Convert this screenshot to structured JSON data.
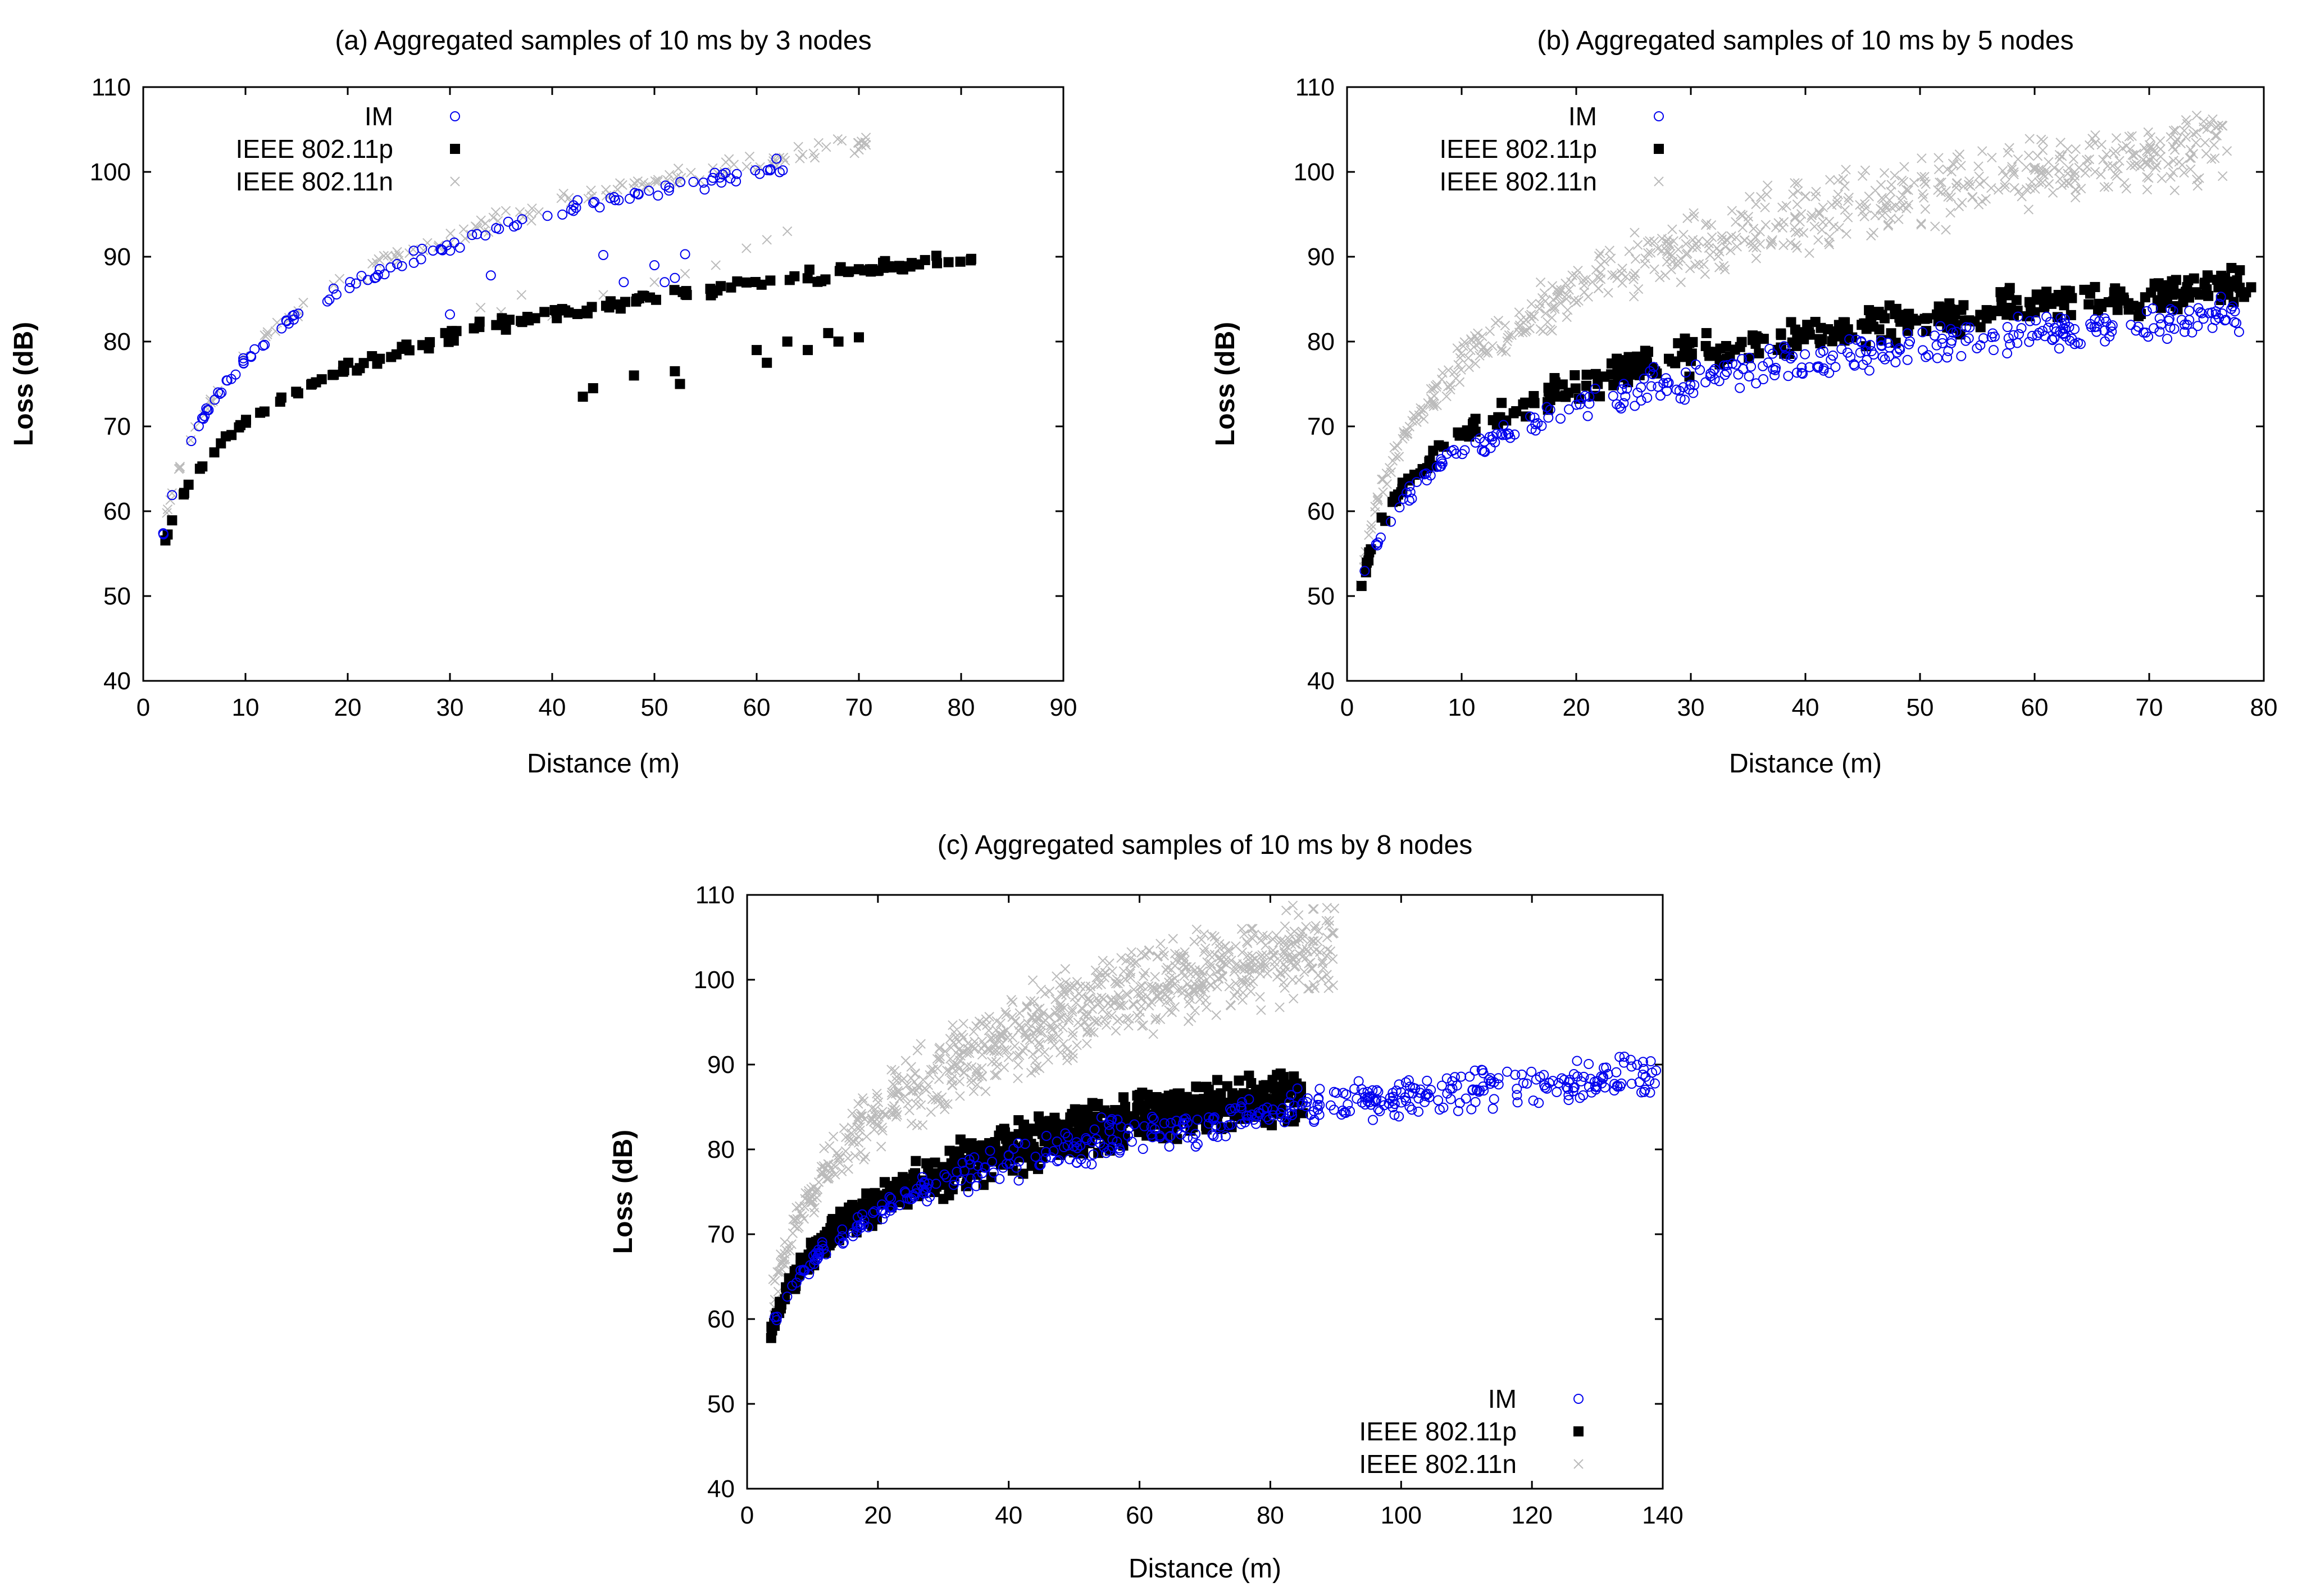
{
  "chart_data": [
    {
      "type": "scatter",
      "title": "(a) Aggregated samples of 10 ms by 3 nodes",
      "xlabel": "Distance (m)",
      "ylabel": "Loss (dB)",
      "xlim": [
        0,
        90
      ],
      "ylim": [
        40,
        110
      ],
      "xticks": [
        "0",
        "10",
        "20",
        "30",
        "40",
        "50",
        "60",
        "70",
        "80",
        "90"
      ],
      "yticks": [
        "40",
        "50",
        "60",
        "70",
        "80",
        "90",
        "100",
        "110"
      ],
      "legend_position": "top-left",
      "series": [
        {
          "name": "IM",
          "marker": "circle",
          "color": "#0000ee",
          "model": {
            "a": 54,
            "b": 12.5,
            "x0": 1.5,
            "xmax": 63,
            "spread": 1.2,
            "n": 120
          },
          "extra_points": [
            [
              30,
              83.2
            ],
            [
              34,
              87.8
            ],
            [
              45,
              90.2
            ],
            [
              47,
              87
            ],
            [
              50,
              89
            ],
            [
              51,
              87
            ],
            [
              52,
              87.5
            ],
            [
              53,
              90.3
            ]
          ]
        },
        {
          "name": "IEEE 802.11p",
          "marker": "square",
          "color": "#000000",
          "model": {
            "a": 53,
            "b": 9.2,
            "x0": 1.5,
            "xmax": 81,
            "spread": 1.0,
            "n": 150
          },
          "extra_points": [
            [
              43,
              73.5
            ],
            [
              44,
              74.5
            ],
            [
              48,
              76
            ],
            [
              52,
              76.5
            ],
            [
              52.5,
              75
            ],
            [
              60,
              79
            ],
            [
              61,
              77.5
            ],
            [
              63,
              80
            ],
            [
              65,
              79
            ],
            [
              67,
              81
            ],
            [
              68,
              80
            ],
            [
              70,
              80.5
            ]
          ]
        },
        {
          "name": "IEEE 802.11n",
          "marker": "cross",
          "color": "#bbbbbb",
          "model": {
            "a": 54,
            "b": 12.8,
            "x0": 1.5,
            "xmax": 71,
            "spread": 1.2,
            "n": 140
          },
          "extra_points": [
            [
              33,
              84
            ],
            [
              35,
              83.5
            ],
            [
              37,
              85.5
            ],
            [
              40,
              83
            ],
            [
              45,
              85.5
            ],
            [
              50,
              87
            ],
            [
              53,
              88
            ],
            [
              56,
              89
            ],
            [
              59,
              91
            ],
            [
              61,
              92
            ],
            [
              63,
              93
            ]
          ]
        }
      ]
    },
    {
      "type": "scatter",
      "title": "(b) Aggregated samples of 10 ms by 5 nodes",
      "xlabel": "Distance (m)",
      "ylabel": "Loss (dB)",
      "xlim": [
        0,
        80
      ],
      "ylim": [
        40,
        110
      ],
      "xticks": [
        "0",
        "10",
        "20",
        "30",
        "40",
        "50",
        "60",
        "70",
        "80"
      ],
      "yticks": [
        "40",
        "50",
        "60",
        "70",
        "80",
        "90",
        "100",
        "110"
      ],
      "legend_position": "top-left",
      "series": [
        {
          "name": "IM",
          "marker": "circle",
          "color": "#0000ee",
          "model": {
            "a": 49,
            "b": 7.8,
            "x0": 1,
            "xmax": 78,
            "spread": 2.5,
            "n": 330
          },
          "extra_points": []
        },
        {
          "name": "IEEE 802.11p",
          "marker": "square",
          "color": "#000000",
          "model": {
            "a": 49,
            "b": 8.6,
            "x0": 1,
            "xmax": 79,
            "spread": 2.5,
            "n": 380
          },
          "extra_points": []
        },
        {
          "name": "IEEE 802.11n",
          "marker": "cross",
          "color": "#bbbbbb",
          "model": {
            "a": 49,
            "b": 12.4,
            "x0": 1,
            "xmax": 77,
            "spread": 5,
            "n": 620
          },
          "extra_points": []
        }
      ]
    },
    {
      "type": "scatter",
      "title": "(c) Aggregated samples of 10 ms by 8 nodes",
      "xlabel": "Distance (m)",
      "ylabel": "Loss (dB)",
      "xlim": [
        0,
        140
      ],
      "ylim": [
        40,
        110
      ],
      "xticks": [
        "0",
        "20",
        "40",
        "60",
        "80",
        "100",
        "120",
        "140"
      ],
      "yticks": [
        "40",
        "50",
        "60",
        "70",
        "80",
        "90",
        "100",
        "110"
      ],
      "legend_position": "bottom-right",
      "series": [
        {
          "name": "IM",
          "marker": "circle",
          "color": "#0000ee",
          "model": {
            "a": 58,
            "b": 8.4,
            "x0": 3.5,
            "xmax": 139,
            "spread": 2.8,
            "n": 460
          },
          "extra_points": []
        },
        {
          "name": "IEEE 802.11p",
          "marker": "square",
          "color": "#000000",
          "model": {
            "a": 58,
            "b": 9.0,
            "x0": 3.5,
            "xmax": 85,
            "spread": 3.5,
            "n": 720
          },
          "extra_points": []
        },
        {
          "name": "IEEE 802.11n",
          "marker": "cross",
          "color": "#bbbbbb",
          "model": {
            "a": 61,
            "b": 13.2,
            "x0": 3.5,
            "xmax": 90,
            "spread": 6,
            "n": 820
          },
          "extra_points": []
        }
      ]
    }
  ]
}
